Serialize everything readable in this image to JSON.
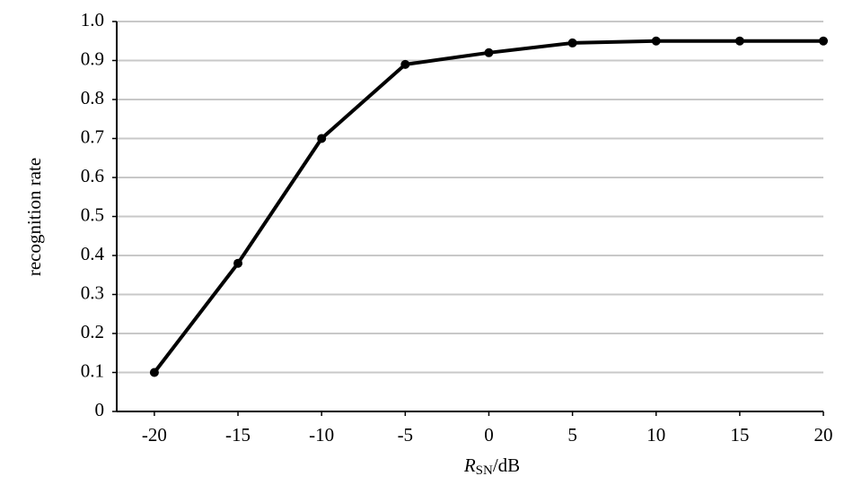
{
  "chart_data": {
    "type": "line",
    "y_label": "recognition rate",
    "x_label": {
      "italic": "R",
      "subscript": "SN",
      "unit": "/dB"
    },
    "x": [
      -20,
      -15,
      -10,
      -5,
      0,
      5,
      10,
      15,
      20
    ],
    "series": [
      {
        "color": "#000000",
        "values": [
          0.1,
          0.38,
          0.7,
          0.89,
          0.92,
          0.945,
          0.95,
          0.95,
          0.95
        ]
      }
    ],
    "xlim": [
      -22.25,
      20
    ],
    "xticks": [
      -20,
      -15,
      -10,
      -5,
      0,
      5,
      10,
      15,
      20
    ],
    "ylim": [
      0,
      1
    ],
    "yticks": [
      0,
      0.1,
      0.2,
      0.3,
      0.4,
      0.5,
      0.6,
      0.7,
      0.8,
      0.9,
      {
        "value": 1,
        "label": "1.0"
      }
    ],
    "grid": true
  }
}
